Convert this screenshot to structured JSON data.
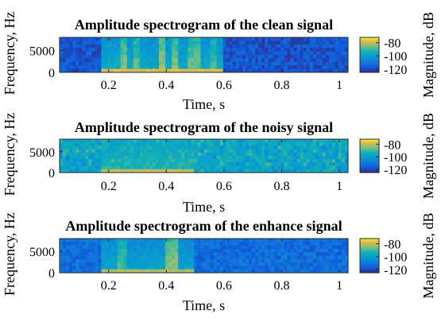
{
  "chart_data": [
    {
      "type": "heatmap",
      "title": "Amplitude spectrogram of the clean signal",
      "xlabel": "Time, s",
      "ylabel": "Frequency, Hz",
      "colorbar_label": "Magnitude, dB",
      "xlim": [
        0.03,
        1.03
      ],
      "ylim": [
        0,
        8000
      ],
      "xticks": [
        0.2,
        0.4,
        0.6,
        0.8,
        1
      ],
      "xtick_labels": [
        "0.2",
        "0.4",
        "0.6",
        "0.8",
        "1"
      ],
      "yticks": [
        0,
        5000
      ],
      "ytick_labels": [
        "0",
        "5000"
      ],
      "clim": [
        -125,
        -72
      ],
      "cticks": [
        -80,
        -100,
        -120
      ],
      "ctick_labels": [
        "-80",
        "-100",
        "-120"
      ],
      "colormap": "parula",
      "bursts": [
        {
          "t": [
            0.18,
            0.6
          ],
          "level": -104,
          "low_freq_level": -78
        },
        {
          "t": [
            0.24,
            0.26
          ],
          "level": -92
        },
        {
          "t": [
            0.29,
            0.31
          ],
          "level": -94
        },
        {
          "t": [
            0.37,
            0.4
          ],
          "level": -90
        },
        {
          "t": [
            0.42,
            0.44
          ],
          "level": -92
        },
        {
          "t": [
            0.48,
            0.52
          ],
          "level": -93
        },
        {
          "t": [
            0.55,
            0.58
          ],
          "level": -96
        }
      ],
      "background_level": -118
    },
    {
      "type": "heatmap",
      "title": "Amplitude spectrogram of the noisy signal",
      "xlabel": "Time, s",
      "ylabel": "Frequency, Hz",
      "colorbar_label": "Magnitude, dB",
      "xlim": [
        0.03,
        1.03
      ],
      "ylim": [
        0,
        8000
      ],
      "xticks": [
        0.2,
        0.4,
        0.6,
        0.8,
        1
      ],
      "xtick_labels": [
        "0.2",
        "0.4",
        "0.6",
        "0.8",
        "1"
      ],
      "yticks": [
        0,
        5000
      ],
      "ytick_labels": [
        "0",
        "5000"
      ],
      "clim": [
        -125,
        -72
      ],
      "cticks": [
        -80,
        -100,
        -120
      ],
      "ctick_labels": [
        "-80",
        "-100",
        "-120"
      ],
      "colormap": "parula",
      "bursts": [
        {
          "t": [
            0.18,
            0.5
          ],
          "level": -100,
          "low_freq_level": -80
        }
      ],
      "background_level": -98
    },
    {
      "type": "heatmap",
      "title": "Amplitude spectrogram of the enhance signal",
      "xlabel": "Time, s",
      "ylabel": "Frequency, Hz",
      "colorbar_label": "Magnitude, dB",
      "xlim": [
        0.03,
        1.03
      ],
      "ylim": [
        0,
        8000
      ],
      "xticks": [
        0.2,
        0.4,
        0.6,
        0.8,
        1
      ],
      "xtick_labels": [
        "0.2",
        "0.4",
        "0.6",
        "0.8",
        "1"
      ],
      "yticks": [
        0,
        5000
      ],
      "ytick_labels": [
        "0",
        "5000"
      ],
      "clim": [
        -125,
        -72
      ],
      "cticks": [
        -80,
        -100,
        -120
      ],
      "ctick_labels": [
        "-80",
        "-100",
        "-120"
      ],
      "colormap": "parula",
      "bursts": [
        {
          "t": [
            0.18,
            0.5
          ],
          "level": -106,
          "low_freq_level": -82
        },
        {
          "t": [
            0.23,
            0.26
          ],
          "level": -96
        },
        {
          "t": [
            0.4,
            0.44
          ],
          "level": -90
        }
      ],
      "background_level": -113
    }
  ]
}
